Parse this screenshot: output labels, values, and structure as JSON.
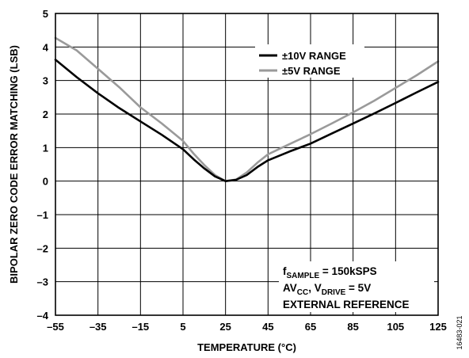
{
  "chart_data": {
    "type": "line",
    "xlabel": "TEMPERATURE (°C)",
    "ylabel": "BIPOLAR ZERO CODE ERROR MATCHING (LSB)",
    "xlim": [
      -55,
      125
    ],
    "ylim": [
      -4,
      5
    ],
    "x_ticks": [
      "–55",
      "–35",
      "–15",
      "5",
      "25",
      "45",
      "65",
      "85",
      "105",
      "125"
    ],
    "y_ticks": [
      "–4",
      "–3",
      "–2",
      "–1",
      "0",
      "1",
      "2",
      "3",
      "4",
      "5"
    ],
    "grid": true,
    "legend_position": "top-right",
    "series": [
      {
        "name": "±10V RANGE",
        "color": "#000000",
        "points": [
          [
            -55,
            3.62
          ],
          [
            -45,
            3.1
          ],
          [
            -35,
            2.62
          ],
          [
            -25,
            2.18
          ],
          [
            -15,
            1.78
          ],
          [
            -5,
            1.38
          ],
          [
            5,
            0.95
          ],
          [
            10,
            0.65
          ],
          [
            15,
            0.38
          ],
          [
            20,
            0.14
          ],
          [
            25,
            0.0
          ],
          [
            30,
            0.04
          ],
          [
            35,
            0.18
          ],
          [
            40,
            0.42
          ],
          [
            45,
            0.62
          ],
          [
            55,
            0.88
          ],
          [
            65,
            1.12
          ],
          [
            75,
            1.42
          ],
          [
            85,
            1.72
          ],
          [
            95,
            2.02
          ],
          [
            105,
            2.33
          ],
          [
            115,
            2.65
          ],
          [
            125,
            2.96
          ]
        ]
      },
      {
        "name": "±5V RANGE",
        "color": "#9a9a9a",
        "points": [
          [
            -55,
            4.27
          ],
          [
            -45,
            3.9
          ],
          [
            -35,
            3.35
          ],
          [
            -25,
            2.8
          ],
          [
            -15,
            2.2
          ],
          [
            -5,
            1.72
          ],
          [
            5,
            1.2
          ],
          [
            10,
            0.82
          ],
          [
            15,
            0.48
          ],
          [
            20,
            0.18
          ],
          [
            25,
            0.0
          ],
          [
            30,
            0.05
          ],
          [
            35,
            0.26
          ],
          [
            40,
            0.55
          ],
          [
            45,
            0.8
          ],
          [
            55,
            1.1
          ],
          [
            65,
            1.4
          ],
          [
            75,
            1.72
          ],
          [
            85,
            2.05
          ],
          [
            95,
            2.4
          ],
          [
            105,
            2.78
          ],
          [
            115,
            3.16
          ],
          [
            125,
            3.57
          ]
        ]
      }
    ],
    "annotation": {
      "line1_main": "f",
      "line1_sub": "SAMPLE",
      "line1_rest": " = 150kSPS",
      "line2_a": "AV",
      "line2_a_sub": "CC",
      "line2_b": ", V",
      "line2_b_sub": "DRIVE",
      "line2_rest": " = 5V",
      "line3": "EXTERNAL REFERENCE"
    },
    "figure_id": "16483-021"
  }
}
